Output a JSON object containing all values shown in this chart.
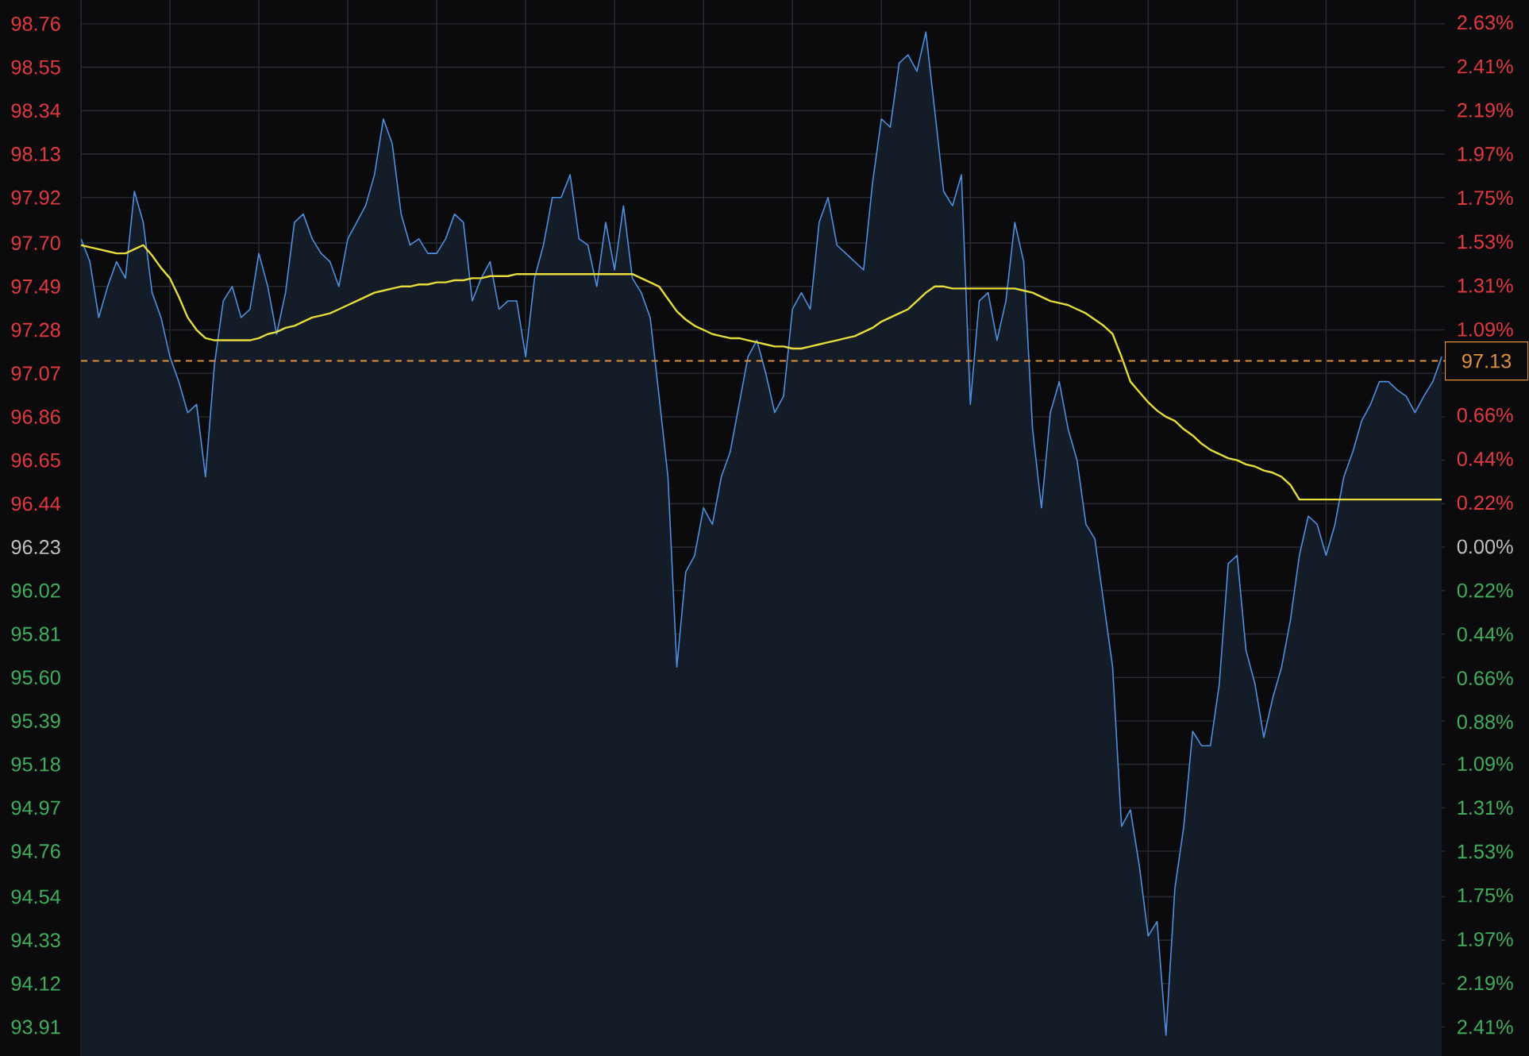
{
  "chart_data": {
    "type": "area",
    "categories": [
      null,
      null,
      null,
      null,
      null,
      null,
      null,
      null,
      null,
      null,
      null,
      null,
      null,
      null,
      null,
      null,
      null,
      null,
      null,
      null,
      null,
      null,
      null,
      null,
      null,
      null,
      null,
      null,
      null,
      null,
      null,
      null,
      null,
      null,
      null,
      null,
      null,
      null,
      null,
      null,
      null,
      null,
      null,
      null,
      null,
      null,
      null,
      null,
      null,
      null,
      null,
      null,
      null,
      null,
      null,
      null,
      null,
      null,
      null,
      null,
      null,
      null,
      null,
      null,
      null,
      null,
      null,
      null,
      null,
      null,
      null,
      null,
      null,
      null,
      null,
      null,
      null,
      null,
      null,
      null,
      null,
      null,
      null,
      null,
      null,
      null,
      null,
      null,
      null,
      null,
      null,
      null,
      null,
      null,
      null,
      null,
      null,
      null,
      null,
      null,
      null,
      null,
      null,
      null,
      null,
      null,
      null,
      null,
      null,
      null,
      null,
      null,
      null,
      null,
      null,
      null,
      null,
      null,
      null,
      null,
      null,
      null,
      null,
      null,
      null,
      null,
      null,
      null,
      null,
      null,
      null,
      null,
      null,
      null,
      null,
      null,
      null,
      null,
      null,
      null,
      null,
      null,
      null,
      null,
      null,
      null,
      null,
      null,
      null,
      null,
      null,
      null,
      null,
      null
    ],
    "series": [
      {
        "color": "#4f8fe0",
        "values": [
          97.72,
          97.61,
          97.34,
          97.49,
          97.61,
          97.53,
          97.95,
          97.8,
          97.46,
          97.34,
          97.15,
          97.03,
          96.88,
          96.92,
          96.57,
          97.11,
          97.42,
          97.49,
          97.34,
          97.38,
          97.65,
          97.49,
          97.26,
          97.46,
          97.8,
          97.84,
          97.72,
          97.65,
          97.61,
          97.49,
          97.72,
          97.8,
          97.88,
          98.03,
          98.3,
          98.18,
          97.84,
          97.69,
          97.72,
          97.65,
          97.65,
          97.72,
          97.84,
          97.8,
          97.42,
          97.53,
          97.61,
          97.38,
          97.42,
          97.42,
          97.15,
          97.53,
          97.69,
          97.92,
          97.92,
          98.03,
          97.72,
          97.69,
          97.49,
          97.8,
          97.57,
          97.88,
          97.53,
          97.46,
          97.34,
          96.96,
          96.57,
          95.65,
          96.11,
          96.19,
          96.42,
          96.34,
          96.57,
          96.69,
          96.92,
          97.15,
          97.23,
          97.07,
          96.88,
          96.96,
          97.38,
          97.46,
          97.38,
          97.8,
          97.92,
          97.69,
          97.65,
          97.61,
          97.57,
          97.99,
          98.3,
          98.26,
          98.57,
          98.61,
          98.53,
          98.72,
          98.34,
          97.95,
          97.88,
          98.03,
          96.92,
          97.42,
          97.46,
          97.23,
          97.42,
          97.8,
          97.61,
          96.8,
          96.42,
          96.88,
          97.03,
          96.8,
          96.65,
          96.34,
          96.27,
          95.96,
          95.65,
          94.88,
          94.96,
          94.69,
          94.35,
          94.42,
          93.87,
          94.58,
          94.88,
          95.34,
          95.27,
          95.27,
          95.57,
          96.15,
          96.19,
          95.73,
          95.57,
          95.31,
          95.5,
          95.65,
          95.88,
          96.19,
          96.38,
          96.34,
          96.19,
          96.34,
          96.57,
          96.69,
          96.84,
          96.92,
          97.03,
          97.03,
          96.99,
          96.96,
          96.88,
          96.96,
          97.03,
          97.15
        ]
      },
      {
        "type": "line",
        "color": "#e6dc3a",
        "values": [
          97.69,
          97.68,
          97.67,
          97.66,
          97.65,
          97.65,
          97.67,
          97.69,
          97.64,
          97.58,
          97.53,
          97.44,
          97.34,
          97.28,
          97.24,
          97.23,
          97.23,
          97.23,
          97.23,
          97.23,
          97.24,
          97.26,
          97.27,
          97.29,
          97.3,
          97.32,
          97.34,
          97.35,
          97.36,
          97.38,
          97.4,
          97.42,
          97.44,
          97.46,
          97.47,
          97.48,
          97.49,
          97.49,
          97.5,
          97.5,
          97.51,
          97.51,
          97.52,
          97.52,
          97.53,
          97.53,
          97.54,
          97.54,
          97.54,
          97.55,
          97.55,
          97.55,
          97.55,
          97.55,
          97.55,
          97.55,
          97.55,
          97.55,
          97.55,
          97.55,
          97.55,
          97.55,
          97.55,
          97.53,
          97.51,
          97.49,
          97.43,
          97.37,
          97.33,
          97.3,
          97.28,
          97.26,
          97.25,
          97.24,
          97.24,
          97.23,
          97.22,
          97.21,
          97.2,
          97.2,
          97.19,
          97.19,
          97.2,
          97.21,
          97.22,
          97.23,
          97.24,
          97.25,
          97.27,
          97.29,
          97.32,
          97.34,
          97.36,
          97.38,
          97.42,
          97.46,
          97.49,
          97.49,
          97.48,
          97.48,
          97.48,
          97.48,
          97.48,
          97.48,
          97.48,
          97.48,
          97.47,
          97.46,
          97.44,
          97.42,
          97.41,
          97.4,
          97.38,
          97.36,
          97.33,
          97.3,
          97.26,
          97.15,
          97.03,
          96.98,
          96.93,
          96.89,
          96.86,
          96.84,
          96.8,
          96.77,
          96.73,
          96.7,
          96.68,
          96.66,
          96.65,
          96.63,
          96.62,
          96.6,
          96.59,
          96.57,
          96.53,
          96.46,
          96.46,
          96.46,
          96.46,
          96.46,
          96.46,
          96.46,
          96.46,
          96.46,
          96.46,
          96.46,
          96.46,
          96.46,
          96.46,
          96.46,
          96.46,
          96.46
        ]
      }
    ],
    "ylim": [
      93.77,
      98.875
    ],
    "yticks": [
      {
        "value": 98.76,
        "label": "98.76"
      },
      {
        "value": 98.55,
        "label": "98.55"
      },
      {
        "value": 98.34,
        "label": "98.34"
      },
      {
        "value": 98.13,
        "label": "98.13"
      },
      {
        "value": 97.92,
        "label": "97.92"
      },
      {
        "value": 97.7,
        "label": "97.70"
      },
      {
        "value": 97.49,
        "label": "97.49"
      },
      {
        "value": 97.28,
        "label": "97.28"
      },
      {
        "value": 97.07,
        "label": "97.07"
      },
      {
        "value": 96.86,
        "label": "96.86"
      },
      {
        "value": 96.65,
        "label": "96.65"
      },
      {
        "value": 96.44,
        "label": "96.44"
      },
      {
        "value": 96.23,
        "label": "96.23"
      },
      {
        "value": 96.02,
        "label": "96.02"
      },
      {
        "value": 95.81,
        "label": "95.81"
      },
      {
        "value": 95.6,
        "label": "95.60"
      },
      {
        "value": 95.39,
        "label": "95.39"
      },
      {
        "value": 95.18,
        "label": "95.18"
      },
      {
        "value": 94.97,
        "label": "94.97"
      },
      {
        "value": 94.76,
        "label": "94.76"
      },
      {
        "value": 94.54,
        "label": "94.54"
      },
      {
        "value": 94.33,
        "label": "94.33"
      },
      {
        "value": 94.12,
        "label": "94.12"
      },
      {
        "value": 93.91,
        "label": "93.91"
      }
    ],
    "y2lim": [
      -2.556,
      2.743
    ],
    "y2ticks": [
      {
        "value": 2.63,
        "label": "2.63%"
      },
      {
        "value": 2.41,
        "label": "2.41%"
      },
      {
        "value": 2.19,
        "label": "2.19%"
      },
      {
        "value": 1.97,
        "label": "1.97%"
      },
      {
        "value": 1.75,
        "label": "1.75%"
      },
      {
        "value": 1.53,
        "label": "1.53%"
      },
      {
        "value": 1.31,
        "label": "1.31%"
      },
      {
        "value": 1.09,
        "label": "1.09%"
      },
      {
        "value": 0.66,
        "label": "0.66%"
      },
      {
        "value": 0.44,
        "label": "0.44%"
      },
      {
        "value": 0.22,
        "label": "0.22%"
      },
      {
        "value": 0,
        "label": "0.00%"
      },
      {
        "value": -0.22,
        "label": "0.22%"
      },
      {
        "value": -0.44,
        "label": "0.44%"
      },
      {
        "value": -0.66,
        "label": "0.66%"
      },
      {
        "value": -0.88,
        "label": "0.88%"
      },
      {
        "value": -1.09,
        "label": "1.09%"
      },
      {
        "value": -1.31,
        "label": "1.31%"
      },
      {
        "value": -1.53,
        "label": "1.53%"
      },
      {
        "value": -1.75,
        "label": "1.75%"
      },
      {
        "value": -1.97,
        "label": "1.97%"
      },
      {
        "value": -2.19,
        "label": "2.19%"
      },
      {
        "value": -2.41,
        "label": "2.41%"
      }
    ],
    "ref_lines": [
      {
        "axis": "y",
        "value": 97.13,
        "label": "97.13",
        "color": "#e0913a",
        "line_style": "dashed"
      }
    ],
    "grid": true
  }
}
